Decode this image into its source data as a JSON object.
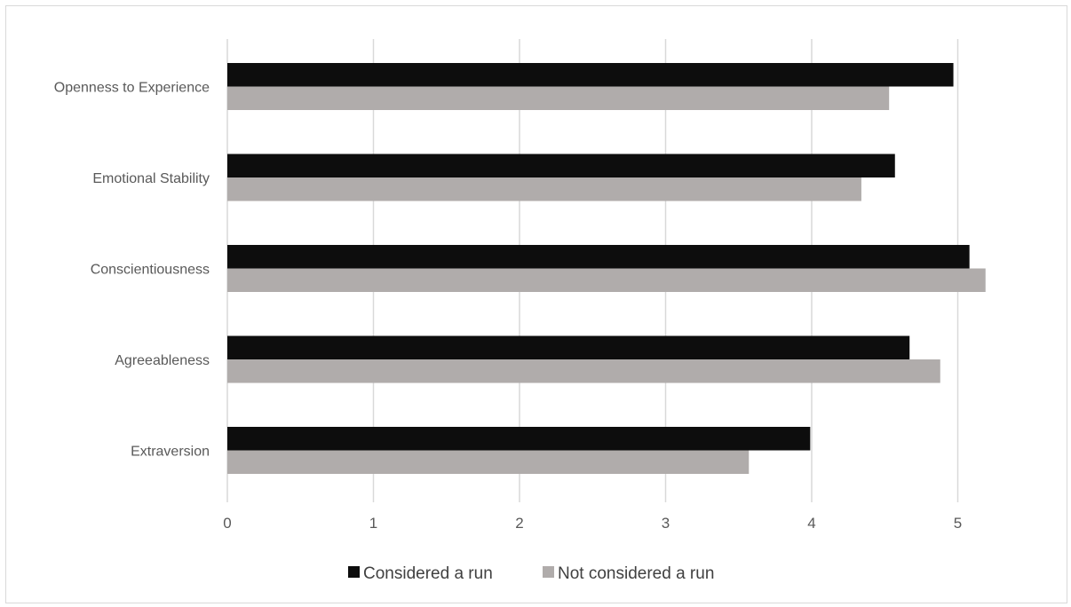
{
  "chart_data": {
    "type": "bar",
    "orientation": "horizontal",
    "title": "",
    "xlabel": "",
    "ylabel": "",
    "categories": [
      "Openness to Experience",
      "Emotional Stability",
      "Conscientiousness",
      "Agreeableness",
      "Extraversion"
    ],
    "series": [
      {
        "name": "Considered a run",
        "color": "#0d0d0d",
        "values": [
          4.97,
          4.57,
          5.08,
          4.67,
          3.99
        ]
      },
      {
        "name": "Not considered a run",
        "color": "#b0acab",
        "values": [
          4.53,
          4.34,
          5.19,
          4.88,
          3.57
        ]
      }
    ],
    "xlim": [
      0,
      5.2
    ],
    "xticks": [
      "0",
      "1",
      "2",
      "3",
      "4",
      "5"
    ],
    "grid": "vertical",
    "legend_position": "bottom"
  }
}
